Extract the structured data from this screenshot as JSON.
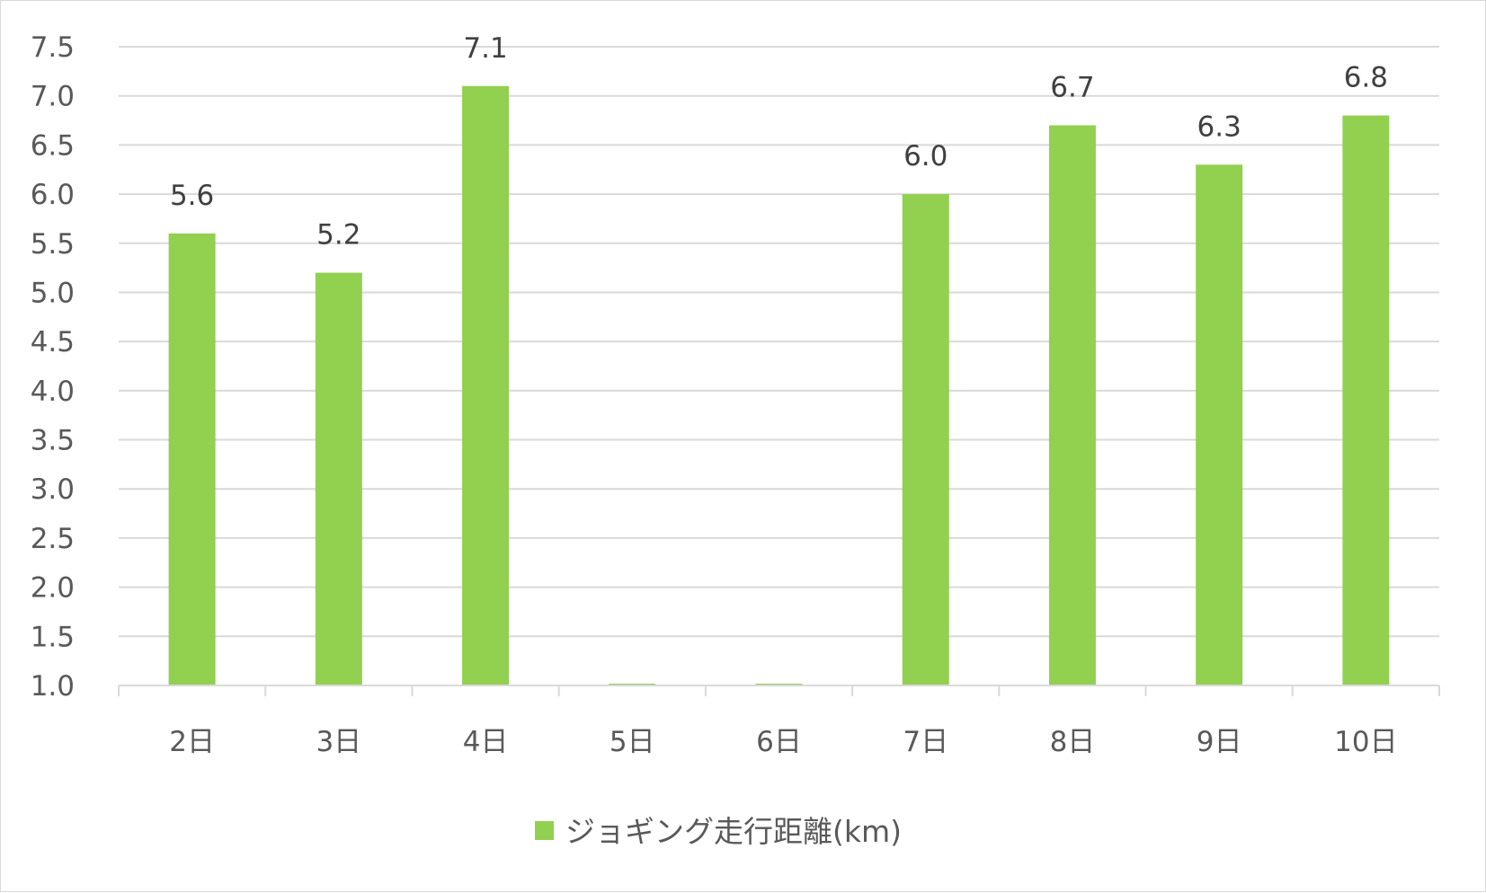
{
  "chart_data": {
    "type": "bar",
    "categories": [
      "2日",
      "3日",
      "4日",
      "5日",
      "6日",
      "7日",
      "8日",
      "9日",
      "10日"
    ],
    "series": [
      {
        "name": "ジョギング走行距離(km)",
        "values": [
          5.6,
          5.2,
          7.1,
          1.0,
          1.0,
          6.0,
          6.7,
          6.3,
          6.8
        ],
        "data_labels": [
          "5.6",
          "5.2",
          "7.1",
          "",
          "",
          "6.0",
          "6.7",
          "6.3",
          "6.8"
        ],
        "color": "#92d050"
      }
    ],
    "y_ticks": [
      "1.0",
      "1.5",
      "2.0",
      "2.5",
      "3.0",
      "3.5",
      "4.0",
      "4.5",
      "5.0",
      "5.5",
      "6.0",
      "6.5",
      "7.0",
      "7.5"
    ],
    "ylim": [
      1.0,
      7.5
    ],
    "title": "",
    "xlabel": "",
    "ylabel": "",
    "grid": true,
    "legend_position": "bottom",
    "colors": {
      "bar": "#92d050",
      "grid": "#d9d9d9",
      "axis": "#d9d9d9",
      "tick_text": "#595959",
      "data_label_text": "#404040"
    }
  }
}
